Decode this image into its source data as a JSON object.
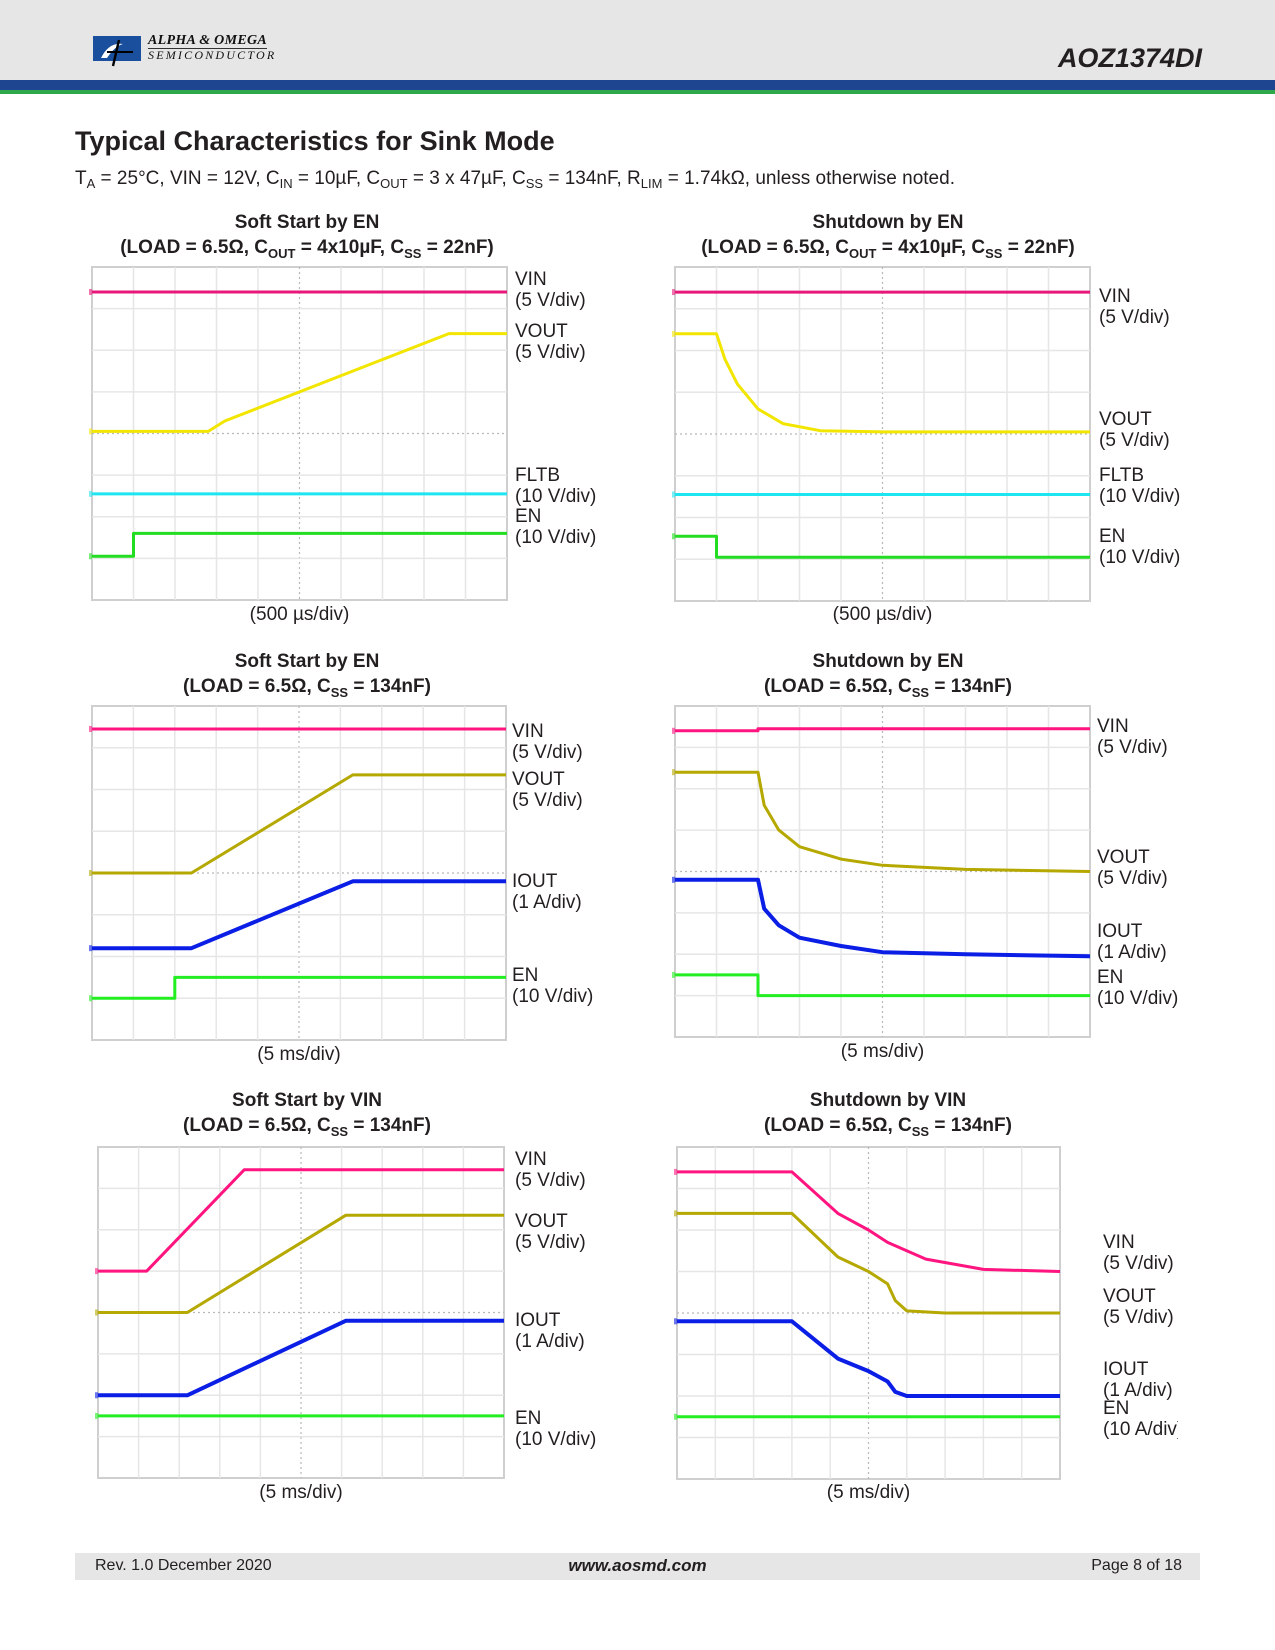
{
  "header": {
    "logo_line1": "ALPHA & OMEGA",
    "logo_line2": "SEMICONDUCTOR",
    "part_number": "AOZ1374DI",
    "colors": {
      "band_blue": "#1e4690",
      "band_green": "#2ea84a",
      "header_bg": "#e6e6e6"
    }
  },
  "page": {
    "title": "Typical Characteristics for Sink Mode",
    "conditions": {
      "ta": "T",
      "ta_sub": "A",
      "ta_val": " = 25°C, VIN = 12V, C",
      "cin_sub": "IN",
      "cin_val": " = 10µF, C",
      "cout_sub": "OUT",
      "cout_val": " = 3 x 47µF, C",
      "css_sub": "SS",
      "css_val": " = 134nF, R",
      "rlim_sub": "LIM",
      "rlim_val": " = 1.74kΩ, unless otherwise noted."
    }
  },
  "chart_data": [
    {
      "type": "line",
      "title": "Soft Start by EN",
      "subtitle_parts": [
        "(LOAD = 6.5Ω, C",
        "OUT",
        " = 4x10µF, C",
        "SS",
        " = 22nF)"
      ],
      "xlabel": "(500 µs/div)",
      "grid": {
        "x_divisions": 10,
        "y_divisions": 8,
        "on": true
      },
      "series": [
        {
          "name": "VIN",
          "scale": "(5 V/div)",
          "color": "#e8177a",
          "points": [
            [
              0,
              0.6
            ],
            [
              10,
              0.6
            ]
          ]
        },
        {
          "name": "VOUT",
          "scale": "(5 V/div)",
          "color": "#f2e600",
          "points": [
            [
              0,
              3.95
            ],
            [
              2.8,
              3.95
            ],
            [
              3.2,
              3.7
            ],
            [
              8.6,
              1.6
            ],
            [
              10,
              1.6
            ]
          ]
        },
        {
          "name": "FLTB",
          "scale": "(10 V/div)",
          "color": "#1ee6f0",
          "points": [
            [
              0,
              5.45
            ],
            [
              10,
              5.45
            ]
          ]
        },
        {
          "name": "EN",
          "scale": "(10 V/div)",
          "color": "#22dd22",
          "points": [
            [
              0,
              6.95
            ],
            [
              1,
              6.95
            ],
            [
              1,
              6.4
            ],
            [
              10,
              6.4
            ]
          ]
        }
      ]
    },
    {
      "type": "line",
      "title": "Shutdown by EN",
      "subtitle_parts": [
        "(LOAD = 6.5Ω, C",
        "OUT",
        " = 4x10µF, C",
        "SS",
        " = 22nF)"
      ],
      "xlabel": "(500 µs/div)",
      "grid": {
        "x_divisions": 10,
        "y_divisions": 8,
        "on": true
      },
      "series": [
        {
          "name": "VIN",
          "scale": "(5 V/div)",
          "color": "#e8177a",
          "points": [
            [
              0,
              0.6
            ],
            [
              10,
              0.6
            ]
          ]
        },
        {
          "name": "VOUT",
          "scale": "(5 V/div)",
          "color": "#f2e600",
          "points": [
            [
              0,
              1.6
            ],
            [
              1,
              1.6
            ],
            [
              1.2,
              2.2
            ],
            [
              1.5,
              2.8
            ],
            [
              2,
              3.4
            ],
            [
              2.6,
              3.75
            ],
            [
              3.5,
              3.92
            ],
            [
              5,
              3.95
            ],
            [
              10,
              3.95
            ]
          ]
        },
        {
          "name": "FLTB",
          "scale": "(10 V/div)",
          "color": "#1ee6f0",
          "points": [
            [
              0,
              5.45
            ],
            [
              10,
              5.45
            ]
          ]
        },
        {
          "name": "EN",
          "scale": "(10 V/div)",
          "color": "#22dd22",
          "points": [
            [
              0,
              6.45
            ],
            [
              1,
              6.45
            ],
            [
              1,
              6.95
            ],
            [
              10,
              6.95
            ]
          ]
        }
      ]
    },
    {
      "type": "line",
      "title": "Soft Start by EN",
      "subtitle_parts": [
        "(LOAD = 6.5Ω, C",
        "SS",
        " = 134nF)"
      ],
      "xlabel": "(5 ms/div)",
      "grid": {
        "x_divisions": 10,
        "y_divisions": 8,
        "on": true
      },
      "series": [
        {
          "name": "VIN",
          "scale": "(5 V/div)",
          "color": "#ff1480",
          "points": [
            [
              0,
              0.55
            ],
            [
              10,
              0.55
            ]
          ]
        },
        {
          "name": "VOUT",
          "scale": "(5 V/div)",
          "color": "#b5a800",
          "points": [
            [
              0,
              4
            ],
            [
              2.4,
              4
            ],
            [
              6.3,
              1.65
            ],
            [
              10,
              1.65
            ]
          ]
        },
        {
          "name": "IOUT",
          "scale": "(1 A/div)",
          "color": "#0a1ee6",
          "points": [
            [
              0,
              5.8
            ],
            [
              2.4,
              5.8
            ],
            [
              6.3,
              4.2
            ],
            [
              10,
              4.2
            ]
          ]
        },
        {
          "name": "EN",
          "scale": "(10 V/div)",
          "color": "#22ee22",
          "points": [
            [
              0,
              7
            ],
            [
              2,
              7
            ],
            [
              2,
              6.5
            ],
            [
              10,
              6.5
            ]
          ]
        }
      ]
    },
    {
      "type": "line",
      "title": "Shutdown by EN",
      "subtitle_parts": [
        "(LOAD = 6.5Ω, C",
        "SS",
        " = 134nF)"
      ],
      "xlabel": "(5 ms/div)",
      "grid": {
        "x_divisions": 10,
        "y_divisions": 8,
        "on": true
      },
      "series": [
        {
          "name": "VIN",
          "scale": "(5 V/div)",
          "color": "#ff1480",
          "points": [
            [
              0,
              0.6
            ],
            [
              2,
              0.6
            ],
            [
              2,
              0.55
            ],
            [
              10,
              0.55
            ]
          ]
        },
        {
          "name": "VOUT",
          "scale": "(5 V/div)",
          "color": "#b5a800",
          "points": [
            [
              0,
              1.6
            ],
            [
              2,
              1.6
            ],
            [
              2.15,
              2.4
            ],
            [
              2.5,
              3.0
            ],
            [
              3,
              3.4
            ],
            [
              4,
              3.7
            ],
            [
              5,
              3.85
            ],
            [
              7,
              3.95
            ],
            [
              10,
              4
            ]
          ]
        },
        {
          "name": "IOUT",
          "scale": "(1 A/div)",
          "color": "#0a1ee6",
          "points": [
            [
              0,
              4.2
            ],
            [
              2,
              4.2
            ],
            [
              2.15,
              4.9
            ],
            [
              2.5,
              5.3
            ],
            [
              3,
              5.6
            ],
            [
              4,
              5.8
            ],
            [
              5,
              5.95
            ],
            [
              7,
              6
            ],
            [
              10,
              6.05
            ]
          ]
        },
        {
          "name": "EN",
          "scale": "(10 V/div)",
          "color": "#22ee22",
          "points": [
            [
              0,
              6.5
            ],
            [
              2,
              6.5
            ],
            [
              2,
              7
            ],
            [
              10,
              7
            ]
          ]
        }
      ]
    },
    {
      "type": "line",
      "title": "Soft Start by VIN",
      "subtitle_parts": [
        "(LOAD = 6.5Ω, C",
        "SS",
        " = 134nF)"
      ],
      "xlabel": "(5 ms/div)",
      "grid": {
        "x_divisions": 10,
        "y_divisions": 8,
        "on": true
      },
      "series": [
        {
          "name": "VIN",
          "scale": "(5 V/div)",
          "color": "#ff1480",
          "points": [
            [
              0,
              3
            ],
            [
              1.2,
              3
            ],
            [
              3.6,
              0.55
            ],
            [
              10,
              0.55
            ]
          ]
        },
        {
          "name": "VOUT",
          "scale": "(5 V/div)",
          "color": "#b5a800",
          "points": [
            [
              0,
              4
            ],
            [
              2.2,
              4
            ],
            [
              6.1,
              1.65
            ],
            [
              10,
              1.65
            ]
          ]
        },
        {
          "name": "IOUT",
          "scale": "(1 A/div)",
          "color": "#0a1ee6",
          "points": [
            [
              0,
              6
            ],
            [
              2.2,
              6
            ],
            [
              6.1,
              4.2
            ],
            [
              10,
              4.2
            ]
          ]
        },
        {
          "name": "EN",
          "scale": "(10 V/div)",
          "color": "#22ee22",
          "points": [
            [
              0,
              6.5
            ],
            [
              10,
              6.5
            ]
          ]
        }
      ]
    },
    {
      "type": "line",
      "title": "Shutdown by VIN",
      "subtitle_parts": [
        "(LOAD = 6.5Ω, C",
        "SS",
        " = 134nF)"
      ],
      "xlabel": "(5 ms/div)",
      "grid": {
        "x_divisions": 10,
        "y_divisions": 8,
        "on": true
      },
      "series": [
        {
          "name": "VIN",
          "scale": "(5 V/div)",
          "color": "#ff1480",
          "points": [
            [
              0,
              0.6
            ],
            [
              3,
              0.6
            ],
            [
              4.2,
              1.6
            ],
            [
              5,
              2
            ],
            [
              5.5,
              2.3
            ],
            [
              6.5,
              2.7
            ],
            [
              8,
              2.95
            ],
            [
              10,
              3
            ]
          ]
        },
        {
          "name": "VOUT",
          "scale": "(5 V/div)",
          "color": "#b5a800",
          "points": [
            [
              0,
              1.6
            ],
            [
              3,
              1.6
            ],
            [
              4.2,
              2.65
            ],
            [
              5,
              3
            ],
            [
              5.5,
              3.3
            ],
            [
              5.7,
              3.7
            ],
            [
              6,
              3.95
            ],
            [
              7,
              4
            ],
            [
              10,
              4
            ]
          ]
        },
        {
          "name": "IOUT",
          "scale": "(1 A/div)",
          "color": "#0a1ee6",
          "points": [
            [
              0,
              4.2
            ],
            [
              3,
              4.2
            ],
            [
              4.2,
              5.1
            ],
            [
              5,
              5.4
            ],
            [
              5.5,
              5.65
            ],
            [
              5.7,
              5.9
            ],
            [
              6,
              6
            ],
            [
              10,
              6
            ]
          ]
        },
        {
          "name": "EN",
          "scale": "(10 A/div)",
          "color": "#22ee22",
          "points": [
            [
              0,
              6.5
            ],
            [
              10,
              6.5
            ]
          ]
        }
      ]
    }
  ],
  "footer": {
    "revision": "Rev. 1.0 December 2020",
    "website": "www.aosmd.com",
    "page": "Page 8 of 18"
  }
}
